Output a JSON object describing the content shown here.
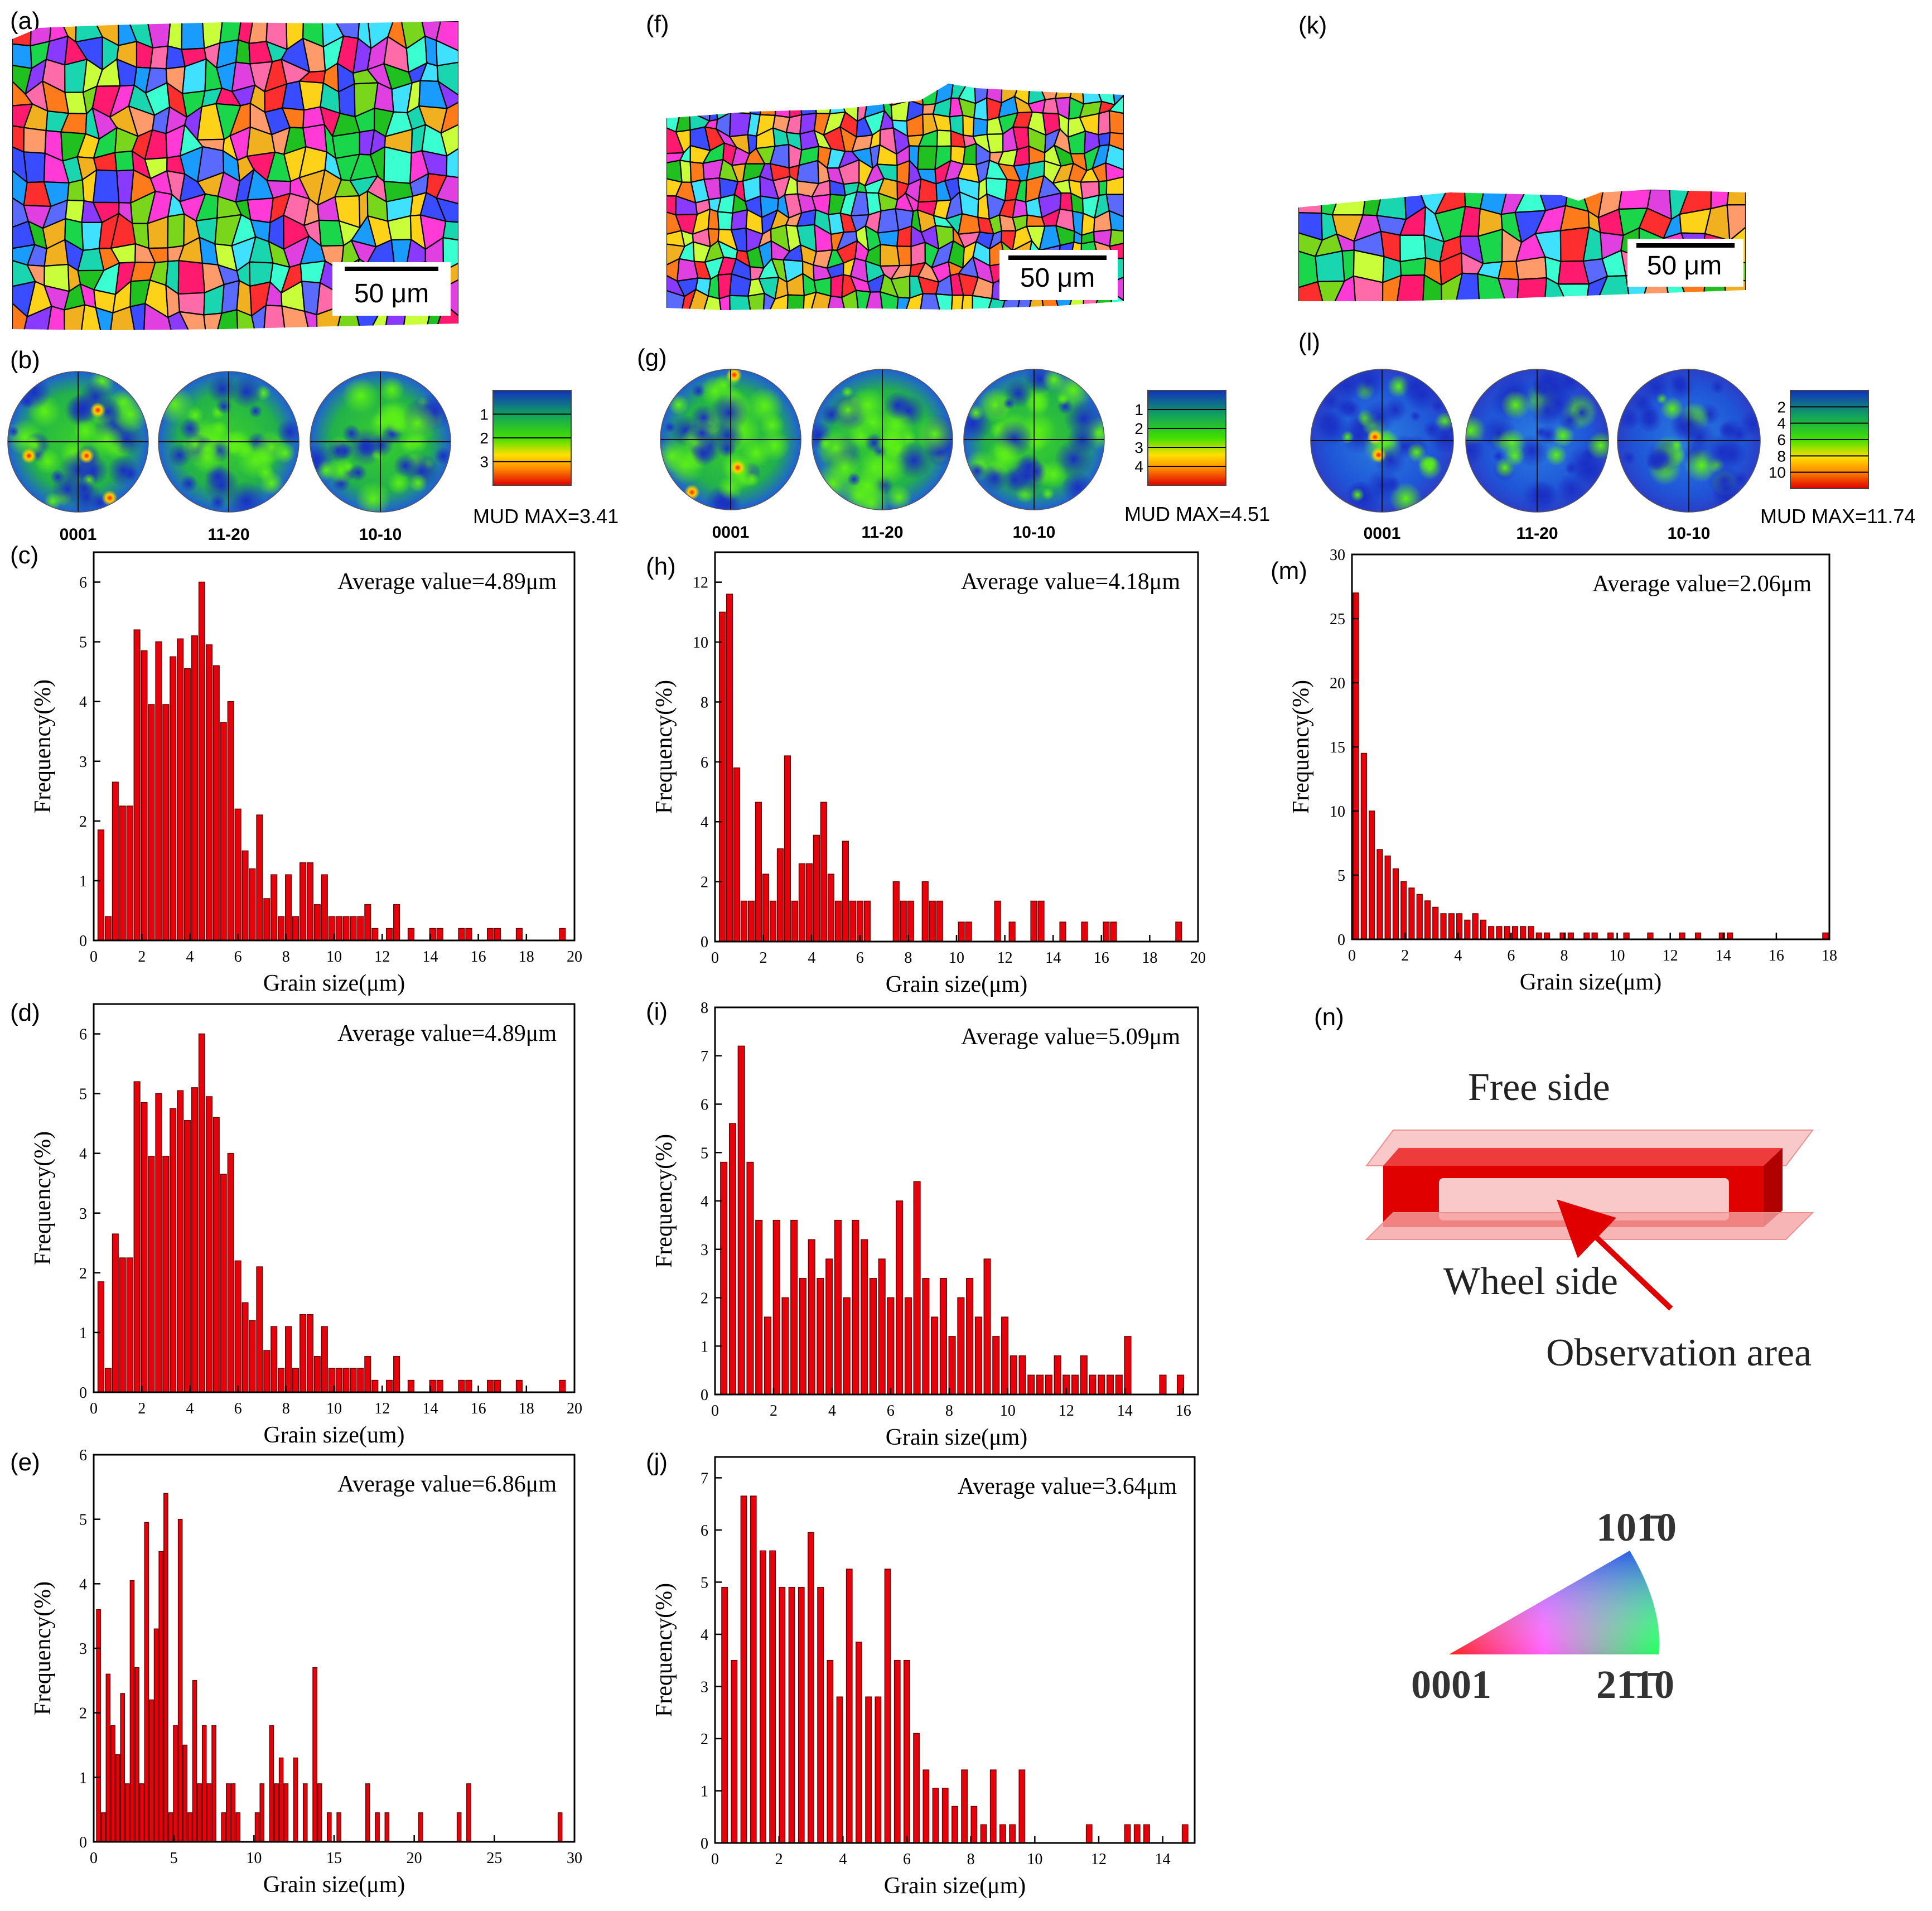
{
  "panel_labels": {
    "a": "(a)",
    "b": "(b)",
    "c": "(c)",
    "d": "(d)",
    "e": "(e)",
    "f": "(f)",
    "g": "(g)",
    "h": "(h)",
    "i": "(i)",
    "j": "(j)",
    "k": "(k)",
    "l": "(l)",
    "m": "(m)",
    "n": "(n)"
  },
  "ebsd_maps": [
    {
      "id": "a",
      "scale_label": "50 μm",
      "seed": 11
    },
    {
      "id": "f",
      "scale_label": "50 μm",
      "seed": 23
    },
    {
      "id": "k",
      "scale_label": "50 μm",
      "seed": 37
    }
  ],
  "pole_figures": [
    {
      "id": "b",
      "labels": [
        "0001",
        "11-20",
        "10-10"
      ],
      "mud_max": "MUD MAX=3.41",
      "colorbar_ticks": [
        "1",
        "2",
        "3"
      ]
    },
    {
      "id": "g",
      "labels": [
        "0001",
        "11-20",
        "10-10"
      ],
      "mud_max": "MUD MAX=4.51",
      "colorbar_ticks": [
        "1",
        "2",
        "3",
        "4"
      ]
    },
    {
      "id": "l",
      "labels": [
        "0001",
        "11-20",
        "10-10"
      ],
      "mud_max": "MUD MAX=11.74",
      "colorbar_ticks": [
        "2",
        "4",
        "6",
        "8",
        "10"
      ]
    }
  ],
  "axis_labels": {
    "x": "Grain size(μm)",
    "y": "Frequency(%)"
  },
  "schematic": {
    "free_side": "Free side",
    "wheel_side": "Wheel side",
    "observation_area": "Observation area"
  },
  "ipf_key": {
    "top": "101̄0",
    "left": "0001",
    "right": "21̄1̄0"
  },
  "chart_data": [
    {
      "id": "c",
      "type": "bar",
      "title": "Average value=4.89μm",
      "xlabel": "Grain size(μm)",
      "ylabel": "Frequency(%)",
      "xlim": [
        0,
        20
      ],
      "ylim": [
        0,
        6.5
      ],
      "xticks": [
        0,
        2,
        4,
        6,
        8,
        10,
        12,
        14,
        16,
        18,
        20
      ],
      "yticks": [
        0,
        1,
        2,
        3,
        4,
        5,
        6
      ],
      "bin_width": 0.3,
      "x": [
        0.3,
        0.6,
        0.9,
        1.2,
        1.5,
        1.8,
        2.1,
        2.4,
        2.7,
        3.0,
        3.3,
        3.6,
        3.9,
        4.2,
        4.5,
        4.8,
        5.1,
        5.4,
        5.7,
        6.0,
        6.3,
        6.6,
        6.9,
        7.2,
        7.5,
        7.8,
        8.1,
        8.4,
        8.7,
        9.0,
        9.3,
        9.6,
        9.9,
        10.2,
        10.5,
        10.8,
        11.1,
        11.4,
        11.7,
        12.3,
        12.6,
        13.2,
        14.1,
        14.4,
        15.3,
        15.6,
        16.5,
        16.8,
        17.7,
        19.5
      ],
      "values": [
        1.85,
        0.4,
        2.65,
        2.25,
        2.25,
        5.2,
        4.85,
        3.95,
        5.0,
        3.95,
        4.75,
        5.05,
        4.55,
        5.1,
        6.0,
        4.95,
        4.6,
        3.65,
        4.0,
        2.2,
        1.5,
        1.2,
        2.1,
        0.7,
        1.1,
        0.4,
        1.1,
        0.4,
        1.3,
        1.3,
        0.6,
        1.1,
        0.4,
        0.4,
        0.4,
        0.4,
        0.4,
        0.6,
        0.2,
        0.2,
        0.6,
        0.2,
        0.2,
        0.2,
        0.2,
        0.2,
        0.2,
        0.2,
        0.2,
        0.2
      ]
    },
    {
      "id": "d",
      "type": "bar",
      "title": "Average value=4.89μm",
      "xlabel": "Grain size(um)",
      "ylabel": "Frequency(%)",
      "xlim": [
        0,
        20
      ],
      "ylim": [
        0,
        6.5
      ],
      "xticks": [
        0,
        2,
        4,
        6,
        8,
        10,
        12,
        14,
        16,
        18,
        20
      ],
      "yticks": [
        0,
        1,
        2,
        3,
        4,
        5,
        6
      ],
      "bin_width": 0.3,
      "x": [
        0.3,
        0.6,
        0.9,
        1.2,
        1.5,
        1.8,
        2.1,
        2.4,
        2.7,
        3.0,
        3.3,
        3.6,
        3.9,
        4.2,
        4.5,
        4.8,
        5.1,
        5.4,
        5.7,
        6.0,
        6.3,
        6.6,
        6.9,
        7.2,
        7.5,
        7.8,
        8.1,
        8.4,
        8.7,
        9.0,
        9.3,
        9.6,
        9.9,
        10.2,
        10.5,
        10.8,
        11.1,
        11.4,
        11.7,
        12.3,
        12.6,
        13.2,
        14.1,
        14.4,
        15.3,
        15.6,
        16.5,
        16.8,
        17.7,
        19.5
      ],
      "values": [
        1.85,
        0.4,
        2.65,
        2.25,
        2.25,
        5.2,
        4.85,
        3.95,
        5.0,
        3.95,
        4.75,
        5.05,
        4.55,
        5.1,
        6.0,
        4.95,
        4.6,
        3.65,
        4.0,
        2.2,
        1.5,
        1.2,
        2.1,
        0.7,
        1.1,
        0.4,
        1.1,
        0.4,
        1.3,
        1.3,
        0.6,
        1.1,
        0.4,
        0.4,
        0.4,
        0.4,
        0.4,
        0.6,
        0.2,
        0.2,
        0.6,
        0.2,
        0.2,
        0.2,
        0.2,
        0.2,
        0.2,
        0.2,
        0.2,
        0.2
      ]
    },
    {
      "id": "e",
      "type": "bar",
      "title": "Average value=6.86μm",
      "xlabel": "Grain size(μm)",
      "ylabel": "Frequency(%)",
      "xlim": [
        0,
        30
      ],
      "ylim": [
        0,
        6
      ],
      "xticks": [
        0,
        5,
        10,
        15,
        20,
        25,
        30
      ],
      "yticks": [
        0,
        1,
        2,
        3,
        4,
        5,
        6
      ],
      "bin_width": 0.3,
      "x": [
        0.3,
        0.6,
        0.9,
        1.2,
        1.5,
        1.8,
        2.1,
        2.4,
        2.7,
        3.0,
        3.3,
        3.6,
        3.9,
        4.2,
        4.5,
        4.8,
        5.1,
        5.4,
        5.7,
        6.0,
        6.3,
        6.6,
        6.9,
        7.2,
        7.5,
        8.1,
        8.4,
        8.7,
        9.0,
        10.2,
        10.5,
        11.1,
        11.4,
        11.7,
        12.0,
        12.6,
        13.2,
        13.8,
        14.1,
        14.7,
        15.3,
        17.1,
        17.7,
        18.3,
        20.4,
        22.8,
        23.4,
        29.1
      ],
      "values": [
        3.6,
        0.45,
        2.6,
        1.8,
        1.35,
        2.3,
        0.9,
        4.05,
        2.7,
        0.9,
        4.95,
        2.2,
        3.3,
        4.5,
        5.4,
        0.45,
        1.8,
        5.0,
        1.5,
        0.45,
        2.5,
        0.9,
        1.8,
        0.9,
        1.8,
        0.45,
        0.9,
        0.9,
        0.45,
        0.45,
        0.9,
        1.8,
        0.9,
        1.3,
        0.9,
        1.3,
        0.9,
        2.7,
        0.9,
        0.45,
        0.45,
        0.9,
        0.45,
        0.45,
        0.45,
        0.45,
        0.9,
        0.45
      ]
    },
    {
      "id": "h",
      "type": "bar",
      "title": "Average value=4.18μm",
      "xlabel": "Grain size(μm)",
      "ylabel": "Frequency(%)",
      "xlim": [
        0,
        20
      ],
      "ylim": [
        0,
        13
      ],
      "xticks": [
        0,
        2,
        4,
        6,
        8,
        10,
        12,
        14,
        16,
        18,
        20
      ],
      "yticks": [
        0,
        2,
        4,
        6,
        8,
        10,
        12
      ],
      "bin_width": 0.3,
      "x": [
        0.3,
        0.6,
        0.9,
        1.2,
        1.5,
        1.8,
        2.1,
        2.4,
        2.7,
        3.0,
        3.3,
        3.6,
        3.9,
        4.2,
        4.5,
        4.8,
        5.1,
        5.4,
        5.7,
        6.0,
        6.3,
        7.5,
        7.8,
        8.1,
        8.7,
        9.0,
        9.3,
        10.2,
        10.5,
        11.7,
        12.3,
        13.2,
        13.5,
        14.4,
        15.3,
        16.2,
        16.5,
        19.2
      ],
      "values": [
        11.0,
        11.6,
        5.8,
        1.35,
        1.35,
        4.65,
        2.25,
        1.35,
        3.1,
        6.2,
        1.35,
        2.6,
        2.6,
        3.55,
        4.65,
        2.25,
        1.35,
        3.35,
        1.35,
        1.35,
        1.35,
        2.0,
        1.35,
        1.35,
        2.0,
        1.35,
        1.35,
        0.65,
        0.65,
        1.35,
        0.65,
        1.35,
        1.35,
        0.65,
        0.65,
        0.65,
        0.65,
        0.65
      ]
    },
    {
      "id": "i",
      "type": "bar",
      "title": "Average value=5.09μm",
      "xlabel": "Grain size(μm)",
      "ylabel": "Frequency(%)",
      "xlim": [
        0,
        16.5
      ],
      "ylim": [
        0,
        8
      ],
      "xticks": [
        0,
        2,
        4,
        6,
        8,
        10,
        12,
        14,
        16
      ],
      "yticks": [
        0,
        1,
        2,
        3,
        4,
        5,
        6,
        7,
        8
      ],
      "bin_width": 0.27,
      "x": [
        0.3,
        0.6,
        0.9,
        1.2,
        1.5,
        1.8,
        2.1,
        2.4,
        2.7,
        3.0,
        3.3,
        3.6,
        3.9,
        4.2,
        4.5,
        4.8,
        5.1,
        5.4,
        5.7,
        6.0,
        6.3,
        6.6,
        6.9,
        7.2,
        7.5,
        7.8,
        8.1,
        8.4,
        8.7,
        9.0,
        9.3,
        9.6,
        9.9,
        10.2,
        10.5,
        10.8,
        11.1,
        11.4,
        11.7,
        12.0,
        12.3,
        12.6,
        12.9,
        13.2,
        13.5,
        13.8,
        14.1,
        15.3,
        15.9
      ],
      "values": [
        4.8,
        5.6,
        7.2,
        4.8,
        3.6,
        1.6,
        3.6,
        2.0,
        3.6,
        2.4,
        3.2,
        2.4,
        2.8,
        3.6,
        2.0,
        3.6,
        3.2,
        2.4,
        2.8,
        2.0,
        4.0,
        2.0,
        4.4,
        2.4,
        1.6,
        2.4,
        1.2,
        2.0,
        2.4,
        1.6,
        2.8,
        1.2,
        1.6,
        0.8,
        0.8,
        0.4,
        0.4,
        0.4,
        0.8,
        0.4,
        0.4,
        0.8,
        0.4,
        0.4,
        0.4,
        0.4,
        1.2,
        0.4,
        0.4
      ]
    },
    {
      "id": "j",
      "type": "bar",
      "title": "Average value=3.64μm",
      "xlabel": "Grain size(μm)",
      "ylabel": "Frequency(%)",
      "xlim": [
        0,
        15
      ],
      "ylim": [
        0,
        7.4
      ],
      "xticks": [
        0,
        2,
        4,
        6,
        8,
        10,
        12,
        14
      ],
      "yticks": [
        0,
        1,
        2,
        3,
        4,
        5,
        6,
        7
      ],
      "bin_width": 0.22,
      "x": [
        0.3,
        0.6,
        0.9,
        1.2,
        1.5,
        1.8,
        2.1,
        2.4,
        2.7,
        3.0,
        3.3,
        3.6,
        3.9,
        4.2,
        4.5,
        4.8,
        5.1,
        5.4,
        5.7,
        6.0,
        6.3,
        6.6,
        6.9,
        7.2,
        7.5,
        7.8,
        8.1,
        8.4,
        8.7,
        9.0,
        9.3,
        9.6,
        11.7,
        12.9,
        13.2,
        13.5,
        14.7
      ],
      "values": [
        4.9,
        3.5,
        6.65,
        6.65,
        5.6,
        5.6,
        4.9,
        4.9,
        4.9,
        5.95,
        4.9,
        3.5,
        2.8,
        5.25,
        3.85,
        2.8,
        2.8,
        5.25,
        3.5,
        3.5,
        2.1,
        1.4,
        1.05,
        1.05,
        0.7,
        1.4,
        0.7,
        0.35,
        1.4,
        0.35,
        0.35,
        1.4,
        0.35,
        0.35,
        0.35,
        0.35,
        0.35
      ]
    },
    {
      "id": "m",
      "type": "bar",
      "title": "Average value=2.06μm",
      "xlabel": "Grain size(μm)",
      "ylabel": "Frequency(%)",
      "xlim": [
        0,
        18
      ],
      "ylim": [
        0,
        30
      ],
      "xticks": [
        0,
        2,
        4,
        6,
        8,
        10,
        12,
        14,
        16,
        18
      ],
      "yticks": [
        0,
        5,
        10,
        15,
        20,
        25,
        30
      ],
      "bin_width": 0.25,
      "x": [
        0.15,
        0.45,
        0.75,
        1.05,
        1.35,
        1.65,
        1.95,
        2.25,
        2.55,
        2.85,
        3.15,
        3.45,
        3.75,
        4.05,
        4.35,
        4.65,
        4.95,
        5.25,
        5.55,
        5.85,
        6.15,
        6.45,
        6.75,
        7.05,
        7.35,
        7.95,
        8.25,
        8.85,
        9.15,
        9.75,
        10.35,
        11.25,
        12.45,
        13.05,
        13.95,
        14.25,
        17.85
      ],
      "values": [
        27.0,
        14.5,
        10.0,
        7.0,
        6.5,
        5.5,
        4.5,
        4.0,
        3.5,
        3.0,
        2.5,
        2.0,
        2.0,
        2.0,
        1.5,
        2.0,
        1.5,
        1.0,
        1.0,
        1.0,
        1.0,
        1.0,
        1.0,
        0.5,
        0.5,
        0.5,
        0.5,
        0.5,
        0.5,
        0.5,
        0.5,
        0.5,
        0.5,
        0.5,
        0.5,
        0.5,
        0.5
      ]
    }
  ],
  "colors": {
    "bar": "#e8000b",
    "bar_edge": "#6b0000",
    "axis": "#000000",
    "schematic_red": "#e00000",
    "schematic_pink": "#f5a3a3"
  }
}
